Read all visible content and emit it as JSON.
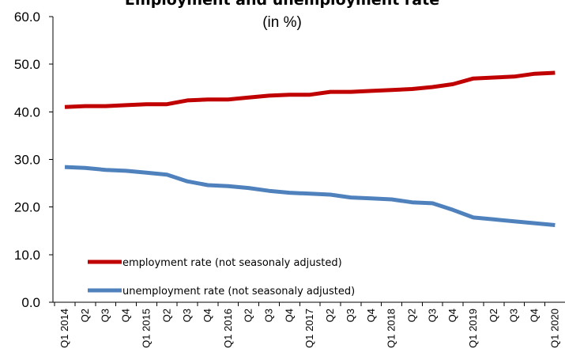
{
  "chart_data": {
    "type": "line",
    "title": "Employment and unemployment rate",
    "subtitle": "(in %)",
    "ylim": [
      0,
      60
    ],
    "yticks": [
      "0.0",
      "10.0",
      "20.0",
      "30.0",
      "40.0",
      "50.0",
      "60.0"
    ],
    "grid": false,
    "legend_position": "bottom-left",
    "categories": [
      "Q1 2014",
      "Q2",
      "Q3",
      "Q4",
      "Q1 2015",
      "Q2",
      "Q3",
      "Q4",
      "Q1 2016",
      "Q2",
      "Q3",
      "Q4",
      "Q1 2017",
      "Q2",
      "Q3",
      "Q4",
      "Q1 2018",
      "Q2",
      "Q3",
      "Q4",
      "Q1 2019",
      "Q2",
      "Q3",
      "Q4",
      "Q1 2020"
    ],
    "series": [
      {
        "name": "employment rate (not seasonaly adjusted)",
        "color": "#c00000",
        "values": [
          41.0,
          41.2,
          41.2,
          41.4,
          41.6,
          41.6,
          42.4,
          42.6,
          42.6,
          43.0,
          43.4,
          43.6,
          43.6,
          44.2,
          44.2,
          44.4,
          44.6,
          44.8,
          45.2,
          45.8,
          47.0,
          47.2,
          47.4,
          48.0,
          48.2
        ]
      },
      {
        "name": "unemployment rate (not seasonaly adjusted)",
        "color": "#4f81bd",
        "values": [
          28.4,
          28.2,
          27.8,
          27.6,
          27.2,
          26.8,
          25.4,
          24.6,
          24.4,
          24.0,
          23.4,
          23.0,
          22.8,
          22.6,
          22.0,
          21.8,
          21.6,
          21.0,
          20.8,
          19.4,
          17.8,
          17.4,
          17.0,
          16.6,
          16.2
        ]
      }
    ]
  }
}
